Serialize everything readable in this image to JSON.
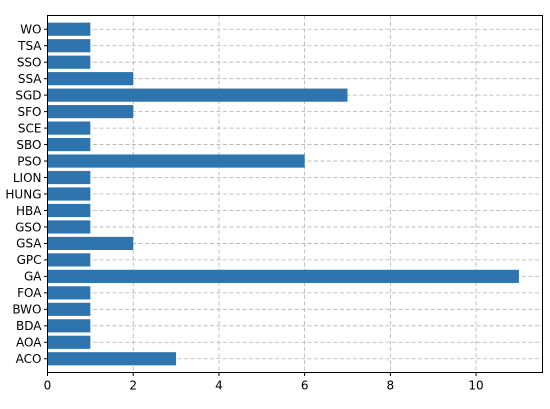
{
  "chart_data": {
    "type": "bar",
    "orientation": "horizontal",
    "categories": [
      "ACO",
      "AOA",
      "BDA",
      "BWO",
      "FOA",
      "GA",
      "GPC",
      "GSA",
      "GSO",
      "HBA",
      "HUNG",
      "LION",
      "PSO",
      "SBO",
      "SCE",
      "SFO",
      "SGD",
      "SSA",
      "SSO",
      "TSA",
      "WO"
    ],
    "values": [
      3,
      1,
      1,
      1,
      1,
      11,
      1,
      2,
      1,
      1,
      1,
      1,
      6,
      1,
      1,
      2,
      7,
      2,
      1,
      1,
      1
    ],
    "xlim": [
      0,
      11.55
    ],
    "xticks": [
      "0",
      "2",
      "4",
      "6",
      "8",
      "10"
    ],
    "grid": true,
    "grid_style": "dashed",
    "bar_color": "#2e75b0",
    "title": "",
    "xlabel": "",
    "ylabel": ""
  }
}
